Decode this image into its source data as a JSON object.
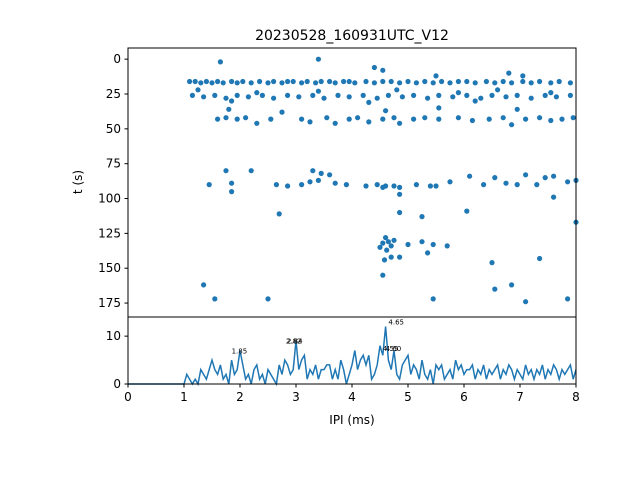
{
  "figure": {
    "title": "20230528_160931UTC_V12",
    "colors": {
      "series": "#1f77b4",
      "axes": "#000000",
      "background": "#ffffff"
    }
  },
  "chart_data": [
    {
      "type": "scatter",
      "ylabel": "t (s)",
      "xlim": [
        0,
        8
      ],
      "ylim": [
        185,
        -8
      ],
      "y_inverted": true,
      "yticks": [
        0,
        25,
        50,
        75,
        100,
        125,
        150,
        175
      ],
      "grid": false,
      "points": [
        [
          1.1,
          16
        ],
        [
          1.2,
          16
        ],
        [
          1.3,
          17
        ],
        [
          1.4,
          16
        ],
        [
          1.5,
          17
        ],
        [
          1.6,
          16
        ],
        [
          1.7,
          17
        ],
        [
          1.85,
          16
        ],
        [
          1.95,
          17
        ],
        [
          2.05,
          16
        ],
        [
          2.2,
          17
        ],
        [
          2.35,
          16
        ],
        [
          2.5,
          17
        ],
        [
          2.6,
          16
        ],
        [
          2.75,
          17
        ],
        [
          2.85,
          16
        ],
        [
          2.95,
          16
        ],
        [
          3.1,
          17
        ],
        [
          3.2,
          16
        ],
        [
          3.35,
          17
        ],
        [
          3.45,
          16
        ],
        [
          3.6,
          16
        ],
        [
          3.7,
          17
        ],
        [
          3.85,
          16
        ],
        [
          3.95,
          16
        ],
        [
          4.05,
          17
        ],
        [
          4.25,
          16
        ],
        [
          4.4,
          17
        ],
        [
          4.55,
          16
        ],
        [
          4.7,
          16
        ],
        [
          4.85,
          17
        ],
        [
          5.0,
          16
        ],
        [
          5.15,
          17
        ],
        [
          5.3,
          16
        ],
        [
          5.45,
          17
        ],
        [
          5.6,
          16
        ],
        [
          5.75,
          17
        ],
        [
          5.9,
          16
        ],
        [
          6.05,
          16
        ],
        [
          6.2,
          17
        ],
        [
          6.4,
          16
        ],
        [
          6.55,
          17
        ],
        [
          6.7,
          16
        ],
        [
          6.85,
          17
        ],
        [
          7.05,
          16
        ],
        [
          7.2,
          17
        ],
        [
          7.35,
          16
        ],
        [
          7.55,
          17
        ],
        [
          7.7,
          16
        ],
        [
          7.9,
          17
        ],
        [
          1.15,
          26
        ],
        [
          1.35,
          27
        ],
        [
          1.55,
          26
        ],
        [
          1.75,
          28
        ],
        [
          1.95,
          26
        ],
        [
          2.15,
          27
        ],
        [
          2.4,
          26
        ],
        [
          2.6,
          28
        ],
        [
          2.85,
          26
        ],
        [
          3.05,
          27
        ],
        [
          3.3,
          26
        ],
        [
          3.5,
          28
        ],
        [
          3.75,
          26
        ],
        [
          3.95,
          27
        ],
        [
          4.2,
          26
        ],
        [
          4.45,
          28
        ],
        [
          4.65,
          26
        ],
        [
          4.9,
          27
        ],
        [
          5.1,
          26
        ],
        [
          5.35,
          28
        ],
        [
          5.55,
          26
        ],
        [
          5.8,
          27
        ],
        [
          6.05,
          26
        ],
        [
          6.3,
          28
        ],
        [
          6.5,
          26
        ],
        [
          6.75,
          27
        ],
        [
          6.95,
          26
        ],
        [
          7.2,
          28
        ],
        [
          7.45,
          26
        ],
        [
          7.65,
          27
        ],
        [
          7.9,
          26
        ],
        [
          1.25,
          22
        ],
        [
          2.3,
          24
        ],
        [
          3.4,
          23
        ],
        [
          4.8,
          22
        ],
        [
          5.9,
          24
        ],
        [
          6.6,
          22
        ],
        [
          7.55,
          24
        ],
        [
          1.85,
          30
        ],
        [
          4.3,
          31
        ],
        [
          6.2,
          30
        ],
        [
          1.6,
          43
        ],
        [
          1.75,
          42
        ],
        [
          1.95,
          43
        ],
        [
          2.1,
          42
        ],
        [
          2.3,
          46
        ],
        [
          2.55,
          43
        ],
        [
          3.1,
          43
        ],
        [
          3.25,
          45
        ],
        [
          3.55,
          42
        ],
        [
          3.7,
          46
        ],
        [
          3.95,
          43
        ],
        [
          4.1,
          42
        ],
        [
          4.3,
          45
        ],
        [
          4.55,
          43
        ],
        [
          4.75,
          42
        ],
        [
          4.85,
          46
        ],
        [
          5.1,
          43
        ],
        [
          5.3,
          42
        ],
        [
          5.55,
          43
        ],
        [
          5.9,
          42
        ],
        [
          6.15,
          44
        ],
        [
          6.45,
          43
        ],
        [
          6.7,
          42
        ],
        [
          6.85,
          47
        ],
        [
          7.1,
          43
        ],
        [
          7.35,
          42
        ],
        [
          7.55,
          44
        ],
        [
          7.75,
          43
        ],
        [
          7.95,
          42
        ],
        [
          1.8,
          36
        ],
        [
          2.75,
          38
        ],
        [
          4.6,
          37
        ],
        [
          5.55,
          35
        ],
        [
          6.95,
          36
        ],
        [
          1.65,
          2
        ],
        [
          3.4,
          0
        ],
        [
          4.4,
          6
        ],
        [
          4.55,
          8
        ],
        [
          5.5,
          12
        ],
        [
          6.8,
          10
        ],
        [
          7.05,
          12
        ],
        [
          1.75,
          80
        ],
        [
          2.2,
          80
        ],
        [
          3.3,
          80
        ],
        [
          3.45,
          82
        ],
        [
          3.6,
          83
        ],
        [
          1.45,
          90
        ],
        [
          1.85,
          89
        ],
        [
          2.65,
          90
        ],
        [
          2.85,
          91
        ],
        [
          3.1,
          90
        ],
        [
          3.25,
          88
        ],
        [
          3.4,
          87
        ],
        [
          3.7,
          89
        ],
        [
          3.9,
          90
        ],
        [
          4.25,
          91
        ],
        [
          4.45,
          90
        ],
        [
          4.6,
          91
        ],
        [
          4.75,
          91
        ],
        [
          4.85,
          92
        ],
        [
          5.15,
          90
        ],
        [
          5.4,
          91
        ],
        [
          5.5,
          91
        ],
        [
          5.75,
          88
        ],
        [
          6.1,
          84
        ],
        [
          6.35,
          90
        ],
        [
          6.55,
          85
        ],
        [
          6.75,
          89
        ],
        [
          6.95,
          90
        ],
        [
          7.1,
          83
        ],
        [
          7.3,
          90
        ],
        [
          7.45,
          85
        ],
        [
          7.6,
          84
        ],
        [
          7.85,
          88
        ],
        [
          8.0,
          87
        ],
        [
          4.55,
          92
        ],
        [
          1.85,
          95
        ],
        [
          4.85,
          97
        ],
        [
          7.6,
          99
        ],
        [
          2.7,
          111
        ],
        [
          4.85,
          110
        ],
        [
          5.25,
          113
        ],
        [
          6.05,
          109
        ],
        [
          8.0,
          117
        ],
        [
          4.5,
          135
        ],
        [
          4.55,
          132
        ],
        [
          4.6,
          128
        ],
        [
          4.65,
          131
        ],
        [
          4.7,
          134
        ],
        [
          4.75,
          130
        ],
        [
          4.62,
          137
        ],
        [
          4.58,
          144
        ],
        [
          4.7,
          142
        ],
        [
          4.85,
          142
        ],
        [
          5.0,
          133
        ],
        [
          5.25,
          131
        ],
        [
          5.35,
          139
        ],
        [
          5.45,
          133
        ],
        [
          5.7,
          134
        ],
        [
          6.5,
          146
        ],
        [
          7.35,
          143
        ],
        [
          4.55,
          155
        ],
        [
          1.35,
          162
        ],
        [
          6.55,
          165
        ],
        [
          6.85,
          162
        ],
        [
          1.55,
          172
        ],
        [
          2.5,
          172
        ],
        [
          5.45,
          172
        ],
        [
          7.1,
          174
        ],
        [
          7.85,
          172
        ]
      ]
    },
    {
      "type": "line",
      "xlabel": "IPI (ms)",
      "xlim": [
        0,
        8
      ],
      "ylim": [
        0,
        14
      ],
      "xticks": [
        0,
        1,
        2,
        3,
        4,
        5,
        6,
        7,
        8
      ],
      "yticks": [
        0,
        10
      ],
      "grid": false,
      "x_start": 0.0,
      "x_step": 0.05,
      "y": [
        0,
        0,
        0,
        0,
        0,
        0,
        0,
        0,
        0,
        0,
        0,
        0,
        0,
        0,
        0,
        0,
        0,
        0,
        0,
        0,
        0,
        2,
        1,
        0,
        1,
        0,
        3,
        2,
        1,
        3,
        5,
        3,
        2,
        4,
        1,
        2,
        0,
        5,
        2,
        3,
        7,
        4,
        1,
        2,
        0,
        3,
        4,
        1,
        2,
        0,
        3,
        2,
        1,
        0,
        4,
        2,
        5,
        4,
        2,
        3,
        9,
        3,
        5,
        6,
        1,
        3,
        2,
        4,
        1,
        3,
        3,
        4,
        4,
        1,
        3,
        1,
        5,
        3,
        0,
        2,
        4,
        7,
        3,
        5,
        6,
        4,
        6,
        1,
        2,
        4,
        8,
        6,
        12,
        5,
        3,
        7,
        2,
        1,
        4,
        5,
        6,
        2,
        4,
        3,
        1,
        5,
        2,
        1,
        3,
        0,
        4,
        3,
        4,
        1,
        2,
        3,
        1,
        5,
        3,
        4,
        2,
        3,
        3,
        4,
        1,
        3,
        2,
        4,
        1,
        3,
        2,
        3,
        4,
        1,
        3,
        2,
        4,
        3,
        1,
        3,
        2,
        1,
        4,
        2,
        3,
        1,
        3,
        2,
        4,
        1,
        3,
        2,
        4,
        3,
        1,
        3,
        2,
        3,
        4,
        1,
        3
      ],
      "annotations": [
        {
          "x": 1.85,
          "y": 6,
          "text": "1.85"
        },
        {
          "x": 2.82,
          "y": 8,
          "text": "2.82"
        },
        {
          "x": 2.84,
          "y": 8,
          "text": "2.84"
        },
        {
          "x": 4.65,
          "y": 12,
          "text": "4.65"
        },
        {
          "x": 4.55,
          "y": 6.5,
          "text": "4.55"
        },
        {
          "x": 4.6,
          "y": 6.5,
          "text": "4.60"
        }
      ]
    }
  ]
}
